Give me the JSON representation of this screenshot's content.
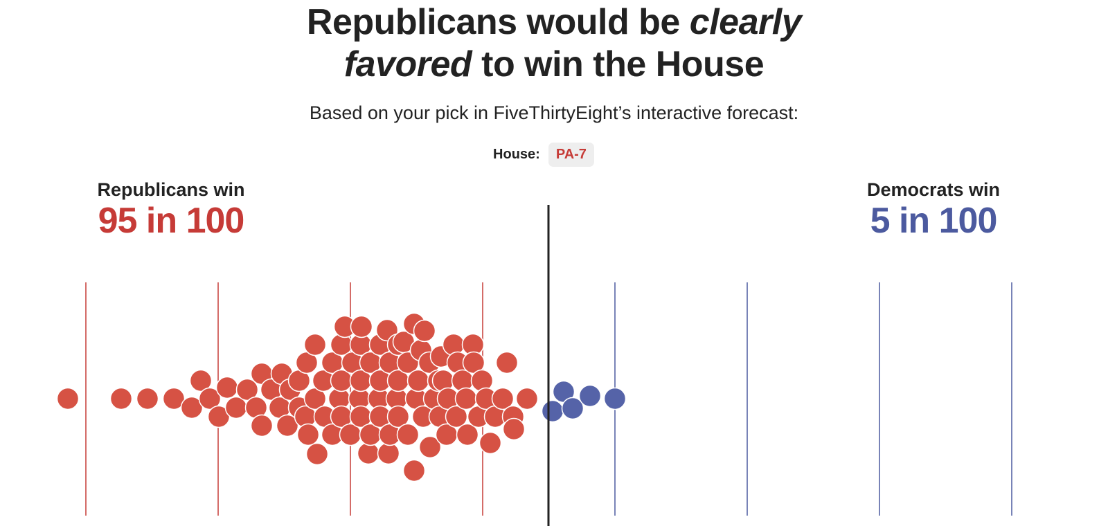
{
  "header": {
    "title_part1": "Republicans would be ",
    "title_em1": "clearly",
    "title_em2": "favored",
    "title_part2": " to win the House",
    "subtitle": "Based on your pick in FiveThirtyEight’s interactive forecast:",
    "pick_label": "House:",
    "pick_value": "PA-7"
  },
  "colors": {
    "republican": "#d65244",
    "republican_line": "#c63b37",
    "democrat": "#5563a8",
    "democrat_line": "#4c5a9f",
    "midline": "#222222"
  },
  "chart_data": {
    "type": "beeswarm",
    "title": "Republicans would be clearly favored to win the House",
    "left_outcome": {
      "label": "Republicans win",
      "value": "95 in 100",
      "count": 95
    },
    "right_outcome": {
      "label": "Democrats win",
      "value": "5 in 100",
      "count": 5
    },
    "total_dots": 100,
    "xlabel": "",
    "ylabel": ""
  }
}
